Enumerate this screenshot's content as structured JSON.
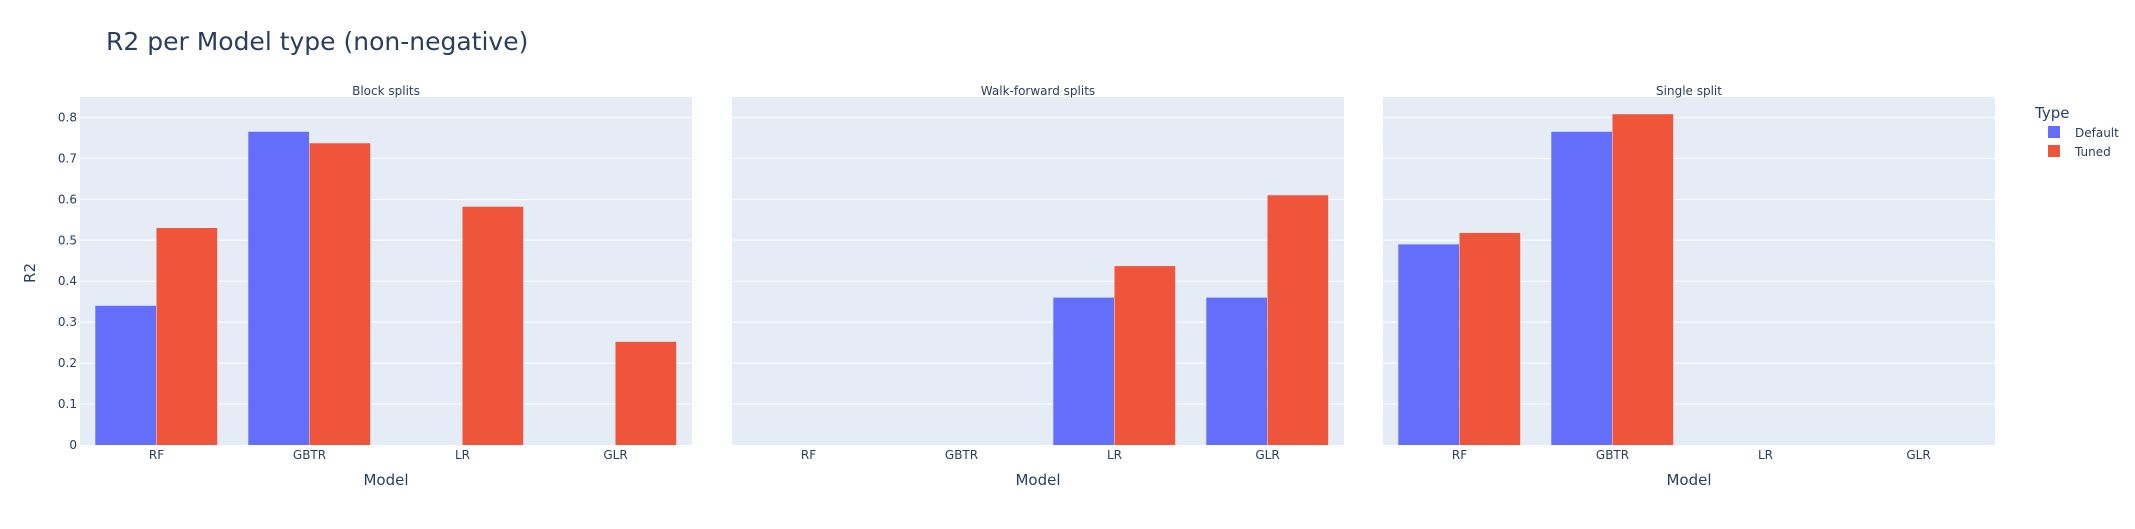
{
  "chart_data": {
    "type": "bar",
    "title": "R2 per Model type (non-negative)",
    "ylabel": "R2",
    "xlabel": "Model",
    "ylim": [
      0,
      0.85
    ],
    "yticks": [
      0,
      0.1,
      0.2,
      0.3,
      0.4,
      0.5,
      0.6,
      0.7,
      0.8
    ],
    "ytick_labels": [
      "0",
      "0.1",
      "0.2",
      "0.3",
      "0.4",
      "0.5",
      "0.6",
      "0.7",
      "0.8"
    ],
    "categories": [
      "RF",
      "GBTR",
      "LR",
      "GLR"
    ],
    "legend": {
      "title": "Type",
      "position": "top-right"
    },
    "series_colors": {
      "Default": "#636efa",
      "Tuned": "#ef553b"
    },
    "plot_bg": "#e5ecf6",
    "grid": true,
    "panels": [
      {
        "title": "Block splits",
        "series": [
          {
            "name": "Default",
            "values": [
              0.34,
              0.765,
              null,
              null
            ]
          },
          {
            "name": "Tuned",
            "values": [
              0.53,
              0.737,
              0.582,
              0.252
            ]
          }
        ]
      },
      {
        "title": "Walk-forward splits",
        "series": [
          {
            "name": "Default",
            "values": [
              null,
              null,
              0.36,
              0.36
            ]
          },
          {
            "name": "Tuned",
            "values": [
              null,
              null,
              0.437,
              0.61
            ]
          }
        ]
      },
      {
        "title": "Single split",
        "series": [
          {
            "name": "Default",
            "values": [
              0.49,
              0.765,
              null,
              null
            ]
          },
          {
            "name": "Tuned",
            "values": [
              0.518,
              0.808,
              null,
              null
            ]
          }
        ]
      }
    ]
  }
}
